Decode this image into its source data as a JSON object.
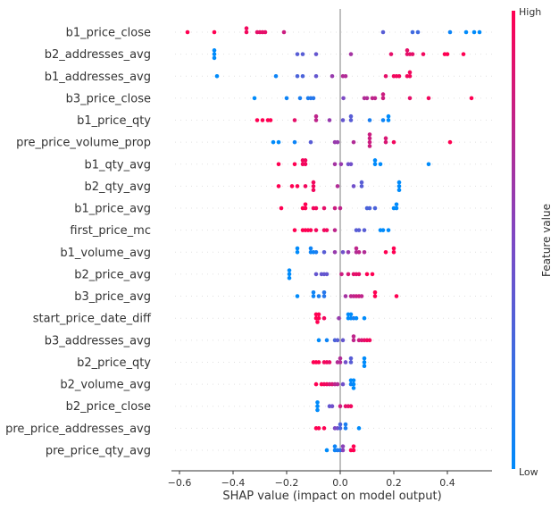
{
  "chart_data": {
    "type": "scatter",
    "subtype": "shap-beeswarm",
    "xlabel": "SHAP value (impact on model output)",
    "xlim": [
      -0.63,
      0.56
    ],
    "xticks": [
      -0.6,
      -0.4,
      -0.2,
      0.0,
      0.2,
      0.4
    ],
    "xtick_labels": [
      "−0.6",
      "−0.4",
      "−0.2",
      "0.0",
      "0.2",
      "0.4"
    ],
    "colorbar": {
      "label": "Feature value",
      "high": "High",
      "low": "Low",
      "low_color": "#008bfb",
      "mid_color": "#7d49c4",
      "high_color": "#ff0052"
    },
    "point_format": "[shap_value, feature_value_0_to_1]",
    "features": [
      {
        "name": "b1_price_close",
        "points": [
          [
            -0.57,
            1
          ],
          [
            -0.47,
            1
          ],
          [
            -0.35,
            0.95
          ],
          [
            -0.35,
            0.95
          ],
          [
            -0.31,
            0.9
          ],
          [
            -0.3,
            0.9
          ],
          [
            -0.29,
            0.9
          ],
          [
            -0.28,
            0.9
          ],
          [
            -0.21,
            0.8
          ],
          [
            0.16,
            0.35
          ],
          [
            0.27,
            0.25
          ],
          [
            0.29,
            0.25
          ],
          [
            0.41,
            0.05
          ],
          [
            0.47,
            0
          ],
          [
            0.5,
            0
          ],
          [
            0.52,
            0
          ]
        ]
      },
      {
        "name": "b2_addresses_avg",
        "points": [
          [
            -0.47,
            0
          ],
          [
            -0.47,
            0
          ],
          [
            -0.47,
            0
          ],
          [
            -0.16,
            0.35
          ],
          [
            -0.14,
            0.35
          ],
          [
            -0.09,
            0.4
          ],
          [
            0.04,
            0.65
          ],
          [
            0.19,
            0.9
          ],
          [
            0.25,
            0.9
          ],
          [
            0.25,
            0.9
          ],
          [
            0.26,
            0.9
          ],
          [
            0.27,
            0.9
          ],
          [
            0.31,
            0.95
          ],
          [
            0.39,
            1
          ],
          [
            0.4,
            1
          ],
          [
            0.46,
            1
          ]
        ]
      },
      {
        "name": "b1_addresses_avg",
        "points": [
          [
            -0.46,
            0
          ],
          [
            -0.24,
            0.05
          ],
          [
            -0.16,
            0.3
          ],
          [
            -0.14,
            0.3
          ],
          [
            -0.09,
            0.4
          ],
          [
            -0.03,
            0.6
          ],
          [
            0.01,
            0.7
          ],
          [
            0.02,
            0.7
          ],
          [
            0.17,
            0.9
          ],
          [
            0.2,
            0.95
          ],
          [
            0.21,
            0.95
          ],
          [
            0.22,
            0.95
          ],
          [
            0.25,
            0.95
          ],
          [
            0.26,
            0.95
          ],
          [
            0.26,
            0.95
          ]
        ]
      },
      {
        "name": "b3_price_close",
        "points": [
          [
            -0.32,
            0
          ],
          [
            -0.2,
            0.05
          ],
          [
            -0.15,
            0.1
          ],
          [
            -0.12,
            0.1
          ],
          [
            -0.11,
            0.15
          ],
          [
            -0.1,
            0.15
          ],
          [
            0.012,
            0.5
          ],
          [
            0.09,
            0.7
          ],
          [
            0.1,
            0.7
          ],
          [
            0.12,
            0.75
          ],
          [
            0.13,
            0.75
          ],
          [
            0.16,
            0.8
          ],
          [
            0.16,
            0.8
          ],
          [
            0.26,
            0.9
          ],
          [
            0.33,
            0.95
          ],
          [
            0.49,
            1
          ]
        ]
      },
      {
        "name": "b1_price_qty",
        "points": [
          [
            -0.31,
            1
          ],
          [
            -0.29,
            1
          ],
          [
            -0.27,
            1
          ],
          [
            -0.26,
            1
          ],
          [
            -0.17,
            0.9
          ],
          [
            -0.09,
            0.75
          ],
          [
            -0.09,
            0.75
          ],
          [
            -0.04,
            0.6
          ],
          [
            0.01,
            0.4
          ],
          [
            0.04,
            0.35
          ],
          [
            0.04,
            0.35
          ],
          [
            0.11,
            0.1
          ],
          [
            0.16,
            0.05
          ],
          [
            0.18,
            0
          ],
          [
            0.18,
            0
          ]
        ]
      },
      {
        "name": "pre_price_volume_prop",
        "points": [
          [
            -0.25,
            0
          ],
          [
            -0.23,
            0
          ],
          [
            -0.17,
            0.05
          ],
          [
            -0.11,
            0.35
          ],
          [
            -0.02,
            0.6
          ],
          [
            -0.01,
            0.6
          ],
          [
            0.05,
            0.7
          ],
          [
            0.11,
            0.8
          ],
          [
            0.11,
            0.8
          ],
          [
            0.11,
            0.8
          ],
          [
            0.11,
            0.8
          ],
          [
            0.17,
            0.85
          ],
          [
            0.17,
            0.85
          ],
          [
            0.2,
            0.95
          ],
          [
            0.41,
            1
          ]
        ]
      },
      {
        "name": "b1_qty_avg",
        "points": [
          [
            -0.23,
            1
          ],
          [
            -0.17,
            1
          ],
          [
            -0.14,
            0.95
          ],
          [
            -0.14,
            0.95
          ],
          [
            -0.13,
            0.95
          ],
          [
            -0.13,
            0.95
          ],
          [
            -0.02,
            0.65
          ],
          [
            0.003,
            0.6
          ],
          [
            0.03,
            0.45
          ],
          [
            0.04,
            0.45
          ],
          [
            0.13,
            0
          ],
          [
            0.13,
            0
          ],
          [
            0.15,
            0
          ],
          [
            0.33,
            0
          ]
        ]
      },
      {
        "name": "b2_qty_avg",
        "points": [
          [
            -0.23,
            1
          ],
          [
            -0.18,
            1
          ],
          [
            -0.16,
            1
          ],
          [
            -0.13,
            0.95
          ],
          [
            -0.1,
            0.95
          ],
          [
            -0.1,
            0.95
          ],
          [
            -0.1,
            0.95
          ],
          [
            -0.01,
            0.7
          ],
          [
            0.05,
            0.45
          ],
          [
            0.08,
            0.35
          ],
          [
            0.08,
            0.35
          ],
          [
            0.22,
            0
          ],
          [
            0.22,
            0
          ],
          [
            0.22,
            0
          ]
        ]
      },
      {
        "name": "b1_price_avg",
        "points": [
          [
            -0.22,
            1
          ],
          [
            -0.14,
            1
          ],
          [
            -0.13,
            1
          ],
          [
            -0.13,
            1
          ],
          [
            -0.1,
            0.95
          ],
          [
            -0.09,
            0.95
          ],
          [
            -0.06,
            0.9
          ],
          [
            -0.02,
            0.8
          ],
          [
            0.0,
            0.75
          ],
          [
            0.1,
            0.3
          ],
          [
            0.11,
            0.3
          ],
          [
            0.13,
            0.3
          ],
          [
            0.2,
            0
          ],
          [
            0.21,
            0
          ],
          [
            0.21,
            0
          ]
        ]
      },
      {
        "name": "first_price_mc",
        "points": [
          [
            -0.17,
            1
          ],
          [
            -0.14,
            1
          ],
          [
            -0.13,
            1
          ],
          [
            -0.12,
            1
          ],
          [
            -0.11,
            1
          ],
          [
            -0.09,
            0.95
          ],
          [
            -0.06,
            0.95
          ],
          [
            -0.05,
            0.95
          ],
          [
            -0.02,
            0.75
          ],
          [
            0.06,
            0.35
          ],
          [
            0.07,
            0.35
          ],
          [
            0.09,
            0.35
          ],
          [
            0.15,
            0
          ],
          [
            0.16,
            0
          ],
          [
            0.18,
            0
          ]
        ]
      },
      {
        "name": "b1_volume_avg",
        "points": [
          [
            -0.16,
            0
          ],
          [
            -0.16,
            0
          ],
          [
            -0.11,
            0.05
          ],
          [
            -0.11,
            0.05
          ],
          [
            -0.1,
            0.05
          ],
          [
            -0.09,
            0.1
          ],
          [
            -0.06,
            0.35
          ],
          [
            -0.02,
            0.6
          ],
          [
            0.01,
            0.45
          ],
          [
            0.03,
            0.6
          ],
          [
            0.06,
            0.7
          ],
          [
            0.06,
            0.75
          ],
          [
            0.07,
            0.75
          ],
          [
            0.09,
            0.7
          ],
          [
            0.17,
            1
          ],
          [
            0.2,
            1
          ],
          [
            0.2,
            1
          ]
        ]
      },
      {
        "name": "b2_price_avg",
        "points": [
          [
            -0.19,
            0
          ],
          [
            -0.19,
            0
          ],
          [
            -0.19,
            0
          ],
          [
            -0.09,
            0.4
          ],
          [
            -0.07,
            0.4
          ],
          [
            -0.06,
            0.4
          ],
          [
            -0.05,
            0.4
          ],
          [
            0.005,
            0.8
          ],
          [
            0.03,
            0.85
          ],
          [
            0.05,
            0.9
          ],
          [
            0.06,
            0.9
          ],
          [
            0.07,
            0.9
          ],
          [
            0.1,
            1
          ],
          [
            0.12,
            1
          ]
        ]
      },
      {
        "name": "b3_price_avg",
        "points": [
          [
            -0.16,
            0
          ],
          [
            -0.1,
            0.05
          ],
          [
            -0.1,
            0.05
          ],
          [
            -0.08,
            0.1
          ],
          [
            -0.06,
            0.15
          ],
          [
            -0.06,
            0.15
          ],
          [
            0.02,
            0.65
          ],
          [
            0.04,
            0.75
          ],
          [
            0.05,
            0.75
          ],
          [
            0.06,
            0.8
          ],
          [
            0.07,
            0.8
          ],
          [
            0.08,
            0.75
          ],
          [
            0.13,
            1
          ],
          [
            0.13,
            1
          ],
          [
            0.21,
            1
          ]
        ]
      },
      {
        "name": "start_price_date_diff",
        "points": [
          [
            -0.09,
            1
          ],
          [
            -0.09,
            1
          ],
          [
            -0.085,
            1
          ],
          [
            -0.08,
            1
          ],
          [
            -0.08,
            1
          ],
          [
            -0.06,
            0.95
          ],
          [
            -0.005,
            0.6
          ],
          [
            0.03,
            0
          ],
          [
            0.03,
            0
          ],
          [
            0.04,
            0
          ],
          [
            0.04,
            0
          ],
          [
            0.05,
            0.1
          ],
          [
            0.06,
            0
          ],
          [
            0.09,
            0
          ]
        ]
      },
      {
        "name": "b3_addresses_avg",
        "points": [
          [
            -0.08,
            0
          ],
          [
            -0.05,
            0.05
          ],
          [
            -0.02,
            0.3
          ],
          [
            -0.01,
            0.35
          ],
          [
            0.01,
            0.4
          ],
          [
            0.05,
            0.75
          ],
          [
            0.05,
            0.75
          ],
          [
            0.07,
            0.8
          ],
          [
            0.08,
            0.85
          ],
          [
            0.09,
            0.9
          ],
          [
            0.1,
            0.95
          ],
          [
            0.11,
            0.95
          ]
        ]
      },
      {
        "name": "b2_price_qty",
        "points": [
          [
            -0.1,
            1
          ],
          [
            -0.09,
            1
          ],
          [
            -0.08,
            1
          ],
          [
            -0.06,
            0.95
          ],
          [
            -0.05,
            0.95
          ],
          [
            -0.04,
            0.9
          ],
          [
            -0.01,
            0.7
          ],
          [
            0.0,
            0.7
          ],
          [
            0.0,
            0.7
          ],
          [
            0.02,
            0.45
          ],
          [
            0.04,
            0.35
          ],
          [
            0.04,
            0.35
          ],
          [
            0.09,
            0
          ],
          [
            0.09,
            0
          ],
          [
            0.09,
            0
          ]
        ]
      },
      {
        "name": "b2_volume_avg",
        "points": [
          [
            -0.09,
            1
          ],
          [
            -0.07,
            1
          ],
          [
            -0.06,
            0.95
          ],
          [
            -0.05,
            0.95
          ],
          [
            -0.04,
            0.85
          ],
          [
            -0.03,
            0.85
          ],
          [
            -0.02,
            0.75
          ],
          [
            -0.01,
            0.7
          ],
          [
            0.01,
            0.45
          ],
          [
            0.04,
            0.05
          ],
          [
            0.04,
            0
          ],
          [
            0.05,
            0
          ],
          [
            0.05,
            0
          ],
          [
            0.05,
            0
          ]
        ]
      },
      {
        "name": "b2_price_close",
        "points": [
          [
            -0.085,
            0
          ],
          [
            -0.085,
            0
          ],
          [
            -0.085,
            0
          ],
          [
            -0.04,
            0.4
          ],
          [
            -0.03,
            0.45
          ],
          [
            0.0,
            0.8
          ],
          [
            0.02,
            0.9
          ],
          [
            0.03,
            0.9
          ],
          [
            0.04,
            0.95
          ]
        ]
      },
      {
        "name": "pre_price_addresses_avg",
        "points": [
          [
            -0.09,
            1
          ],
          [
            -0.08,
            1
          ],
          [
            -0.06,
            1
          ],
          [
            -0.02,
            0.5
          ],
          [
            -0.01,
            0.45
          ],
          [
            0.0,
            0.3
          ],
          [
            0.0,
            0.3
          ],
          [
            0.02,
            0.1
          ],
          [
            0.02,
            0.1
          ],
          [
            0.07,
            0
          ]
        ]
      },
      {
        "name": "pre_price_qty_avg",
        "points": [
          [
            -0.05,
            0
          ],
          [
            -0.02,
            0.05
          ],
          [
            -0.02,
            0.05
          ],
          [
            -0.01,
            0.1
          ],
          [
            0.0,
            0.15
          ],
          [
            0.01,
            0.55
          ],
          [
            0.01,
            0.55
          ],
          [
            0.04,
            1
          ],
          [
            0.05,
            1
          ],
          [
            0.05,
            1
          ]
        ]
      }
    ]
  }
}
